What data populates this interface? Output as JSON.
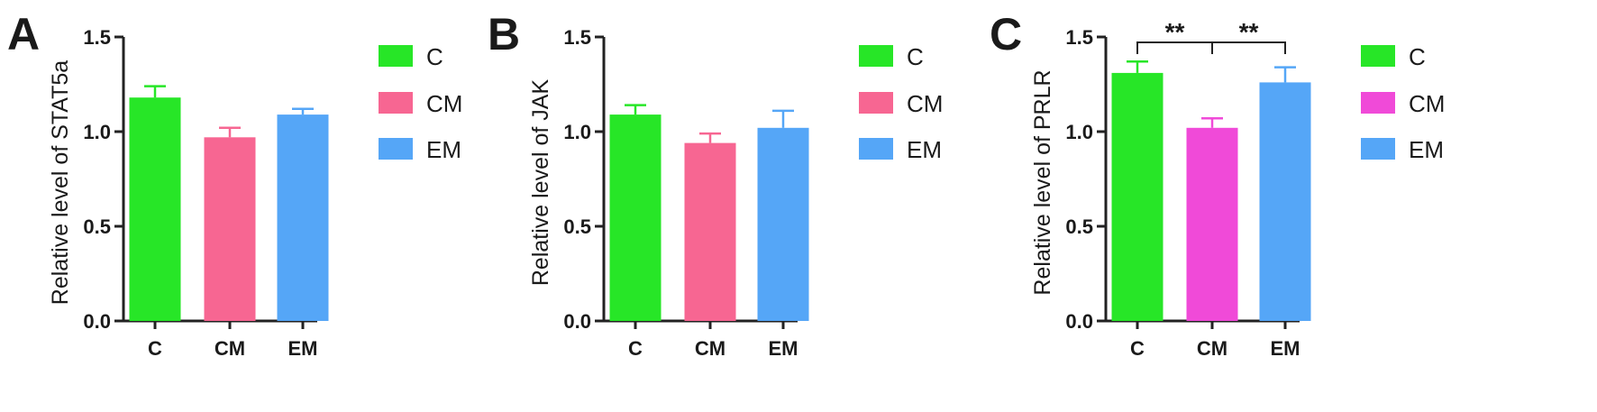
{
  "colors": {
    "axis": "#222222"
  },
  "chart_data": [
    {
      "panel_label": "A",
      "type": "bar",
      "title": "",
      "xlabel": "",
      "ylabel": "Relative level of STAT5a",
      "ylim": [
        0,
        1.5
      ],
      "yticks": [
        0.0,
        0.5,
        1.0,
        1.5
      ],
      "ytick_labels": [
        "0.0",
        "0.5",
        "1.0",
        "1.5"
      ],
      "categories": [
        "C",
        "CM",
        "EM"
      ],
      "values": [
        1.18,
        0.97,
        1.09
      ],
      "errors": [
        0.06,
        0.05,
        0.03
      ],
      "colors": [
        "#27e627",
        "#f76692",
        "#55a6f7"
      ],
      "legend": [
        "C",
        "CM",
        "EM"
      ],
      "legend_position": "right",
      "significance": []
    },
    {
      "panel_label": "B",
      "type": "bar",
      "title": "",
      "xlabel": "",
      "ylabel": "Relative level of JAK",
      "ylim": [
        0,
        1.5
      ],
      "yticks": [
        0.0,
        0.5,
        1.0,
        1.5
      ],
      "ytick_labels": [
        "0.0",
        "0.5",
        "1.0",
        "1.5"
      ],
      "categories": [
        "C",
        "CM",
        "EM"
      ],
      "values": [
        1.09,
        0.94,
        1.02
      ],
      "errors": [
        0.05,
        0.05,
        0.09
      ],
      "colors": [
        "#27e627",
        "#f76692",
        "#55a6f7"
      ],
      "legend": [
        "C",
        "CM",
        "EM"
      ],
      "legend_position": "right",
      "significance": []
    },
    {
      "panel_label": "C",
      "type": "bar",
      "title": "",
      "xlabel": "",
      "ylabel": "Relative level of PRLR",
      "ylim": [
        0,
        1.5
      ],
      "yticks": [
        0.0,
        0.5,
        1.0,
        1.5
      ],
      "ytick_labels": [
        "0.0",
        "0.5",
        "1.0",
        "1.5"
      ],
      "categories": [
        "C",
        "CM",
        "EM"
      ],
      "values": [
        1.31,
        1.02,
        1.26
      ],
      "errors": [
        0.06,
        0.05,
        0.08
      ],
      "colors": [
        "#27e627",
        "#f04ad8",
        "#55a6f7"
      ],
      "legend": [
        "C",
        "CM",
        "EM"
      ],
      "legend_position": "right",
      "significance": [
        {
          "from": 0,
          "to": 1,
          "label": "**"
        },
        {
          "from": 1,
          "to": 2,
          "label": "**"
        }
      ]
    }
  ]
}
